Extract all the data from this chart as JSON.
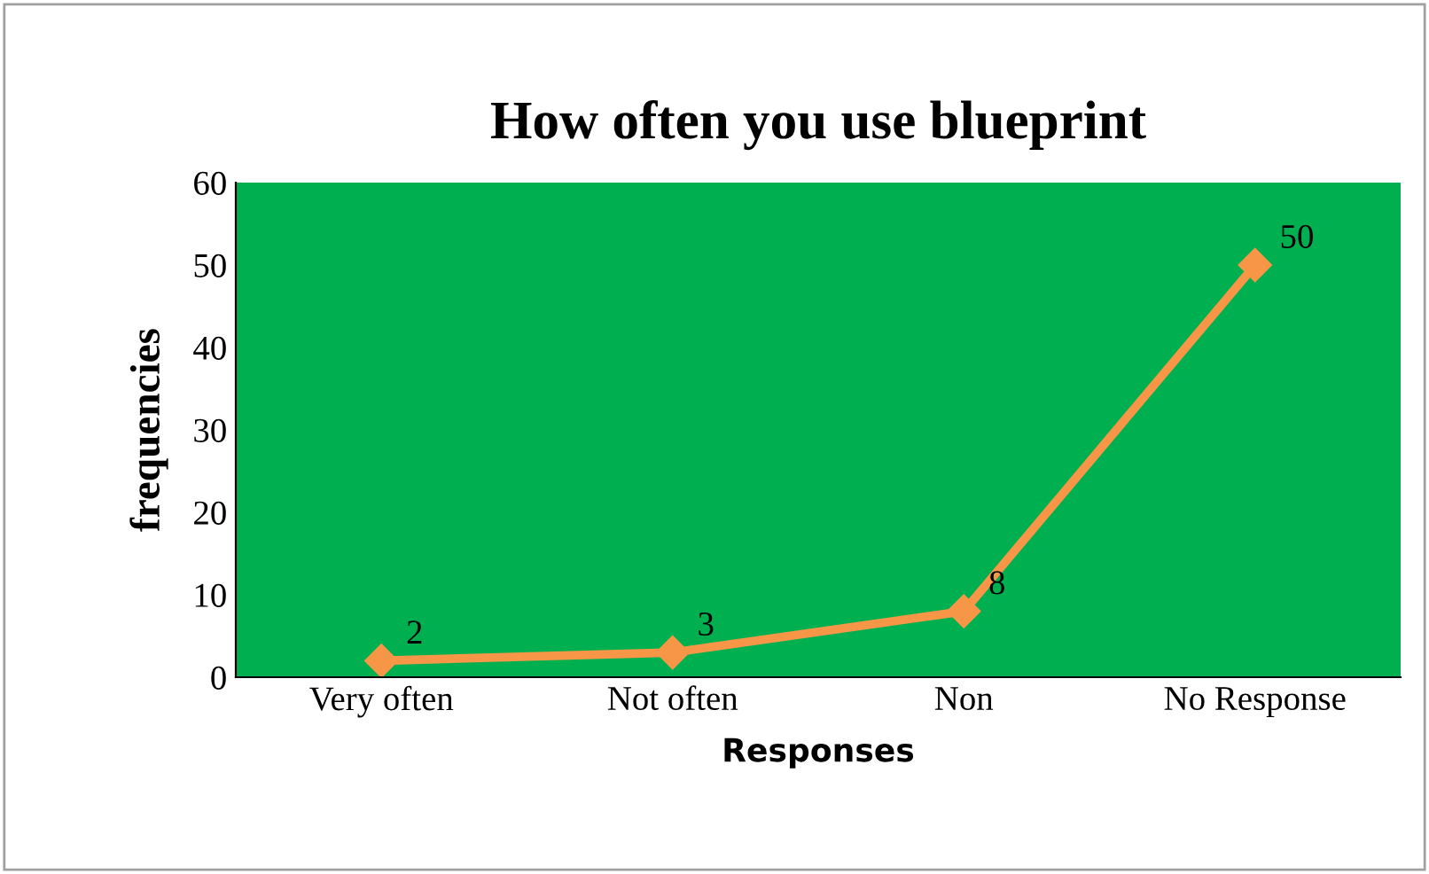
{
  "chart_data": {
    "type": "line",
    "title": "How often you use blueprint",
    "xlabel": "Responses",
    "ylabel": "frequencies",
    "categories": [
      "Very often",
      "Not often",
      "Non",
      "No Response"
    ],
    "series": [
      {
        "color": "#f79646",
        "values": [
          2,
          3,
          8,
          50
        ]
      }
    ],
    "ylim": [
      0,
      60
    ],
    "yticks": [
      0,
      10,
      20,
      30,
      40,
      50,
      60
    ],
    "grid": false,
    "legend": false,
    "marker": "diamond",
    "line_style": "solid",
    "data_labels": true
  }
}
